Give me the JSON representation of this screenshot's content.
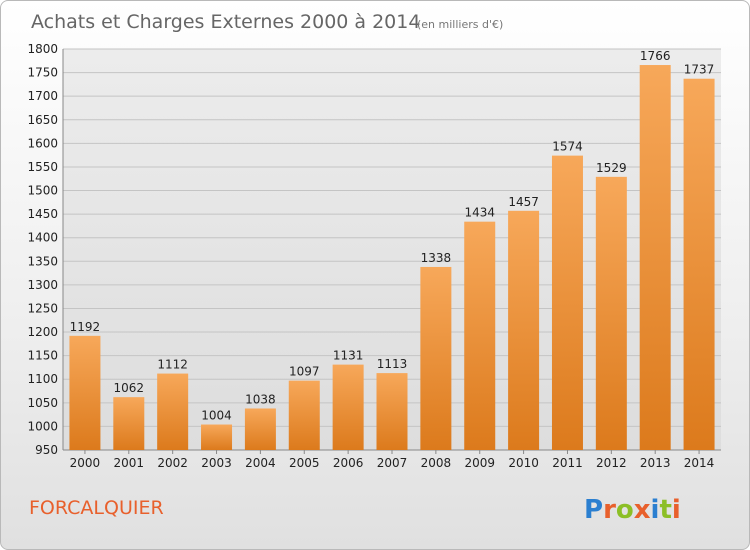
{
  "chart_data": {
    "type": "bar",
    "title": "Achats et Charges Externes 2000 à 2014",
    "subtitle": "(en milliers d'€)",
    "categories": [
      "2000",
      "2001",
      "2002",
      "2003",
      "2004",
      "2005",
      "2006",
      "2007",
      "2008",
      "2009",
      "2010",
      "2011",
      "2012",
      "2013",
      "2014"
    ],
    "series": [
      {
        "values": [
          1192,
          1062,
          1112,
          1004,
          1038,
          1097,
          1131,
          1113,
          1338,
          1434,
          1457,
          1574,
          1529,
          1766,
          1737
        ]
      }
    ],
    "ylim": [
      950,
      1800
    ],
    "yticks": [
      950,
      1000,
      1050,
      1100,
      1150,
      1200,
      1250,
      1300,
      1350,
      1400,
      1450,
      1500,
      1550,
      1600,
      1650,
      1700,
      1750,
      1800
    ],
    "grid": true,
    "xlabel": "",
    "ylabel": "",
    "bar_color_top": "#f7a85a",
    "bar_color_bottom": "#dc7a1c"
  },
  "footer": {
    "city": "FORCALQUIER",
    "logo": "Proxiti",
    "city_color": "#e8602c"
  }
}
